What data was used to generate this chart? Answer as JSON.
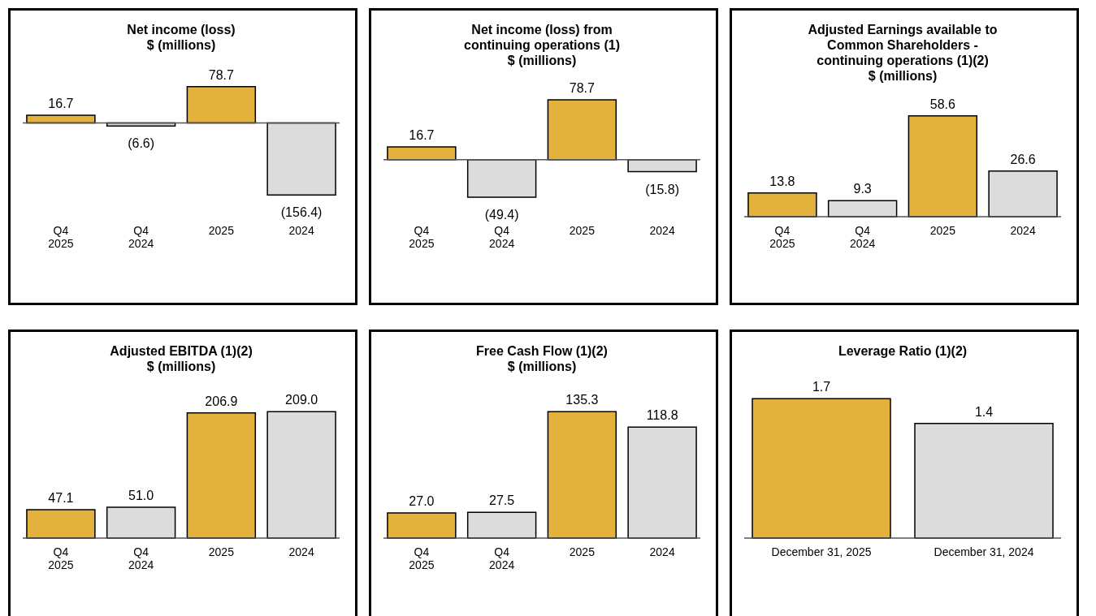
{
  "chart_data": [
    {
      "type": "bar",
      "title": "Net income (loss)\n$ (millions)",
      "categories": [
        "Q4\n2025",
        "Q4\n2024",
        "2025",
        "2024"
      ],
      "values": [
        16.7,
        -6.6,
        78.7,
        -156.4
      ],
      "value_labels": [
        "16.7",
        "(6.6)",
        "78.7",
        "(156.4)"
      ],
      "colors": [
        "#e3b23c",
        "#dcdcdc",
        "#e3b23c",
        "#dcdcdc"
      ],
      "legend": false
    },
    {
      "type": "bar",
      "title": "Net income (loss) from\ncontinuing operations (1)\n$ (millions)",
      "categories": [
        "Q4\n2025",
        "Q4\n2024",
        "2025",
        "2024"
      ],
      "values": [
        16.7,
        -49.4,
        78.7,
        -15.8
      ],
      "value_labels": [
        "16.7",
        "(49.4)",
        "78.7",
        "(15.8)"
      ],
      "colors": [
        "#e3b23c",
        "#dcdcdc",
        "#e3b23c",
        "#dcdcdc"
      ],
      "legend": false
    },
    {
      "type": "bar",
      "title": "Adjusted Earnings available to\nCommon Shareholders  -\ncontinuing operations (1)(2)\n$ (millions)",
      "categories": [
        "Q4\n2025",
        "Q4\n2024",
        "2025",
        "2024"
      ],
      "values": [
        13.8,
        9.3,
        58.6,
        26.6
      ],
      "value_labels": [
        "13.8",
        "9.3",
        "58.6",
        "26.6"
      ],
      "colors": [
        "#e3b23c",
        "#dcdcdc",
        "#e3b23c",
        "#dcdcdc"
      ],
      "legend": false
    },
    {
      "type": "bar",
      "title": "Adjusted EBITDA (1)(2)\n$ (millions)",
      "categories": [
        "Q4\n2025",
        "Q4\n2024",
        "2025",
        "2024"
      ],
      "values": [
        47.1,
        51.0,
        206.9,
        209.0
      ],
      "value_labels": [
        "47.1",
        "51.0",
        "206.9",
        "209.0"
      ],
      "colors": [
        "#e3b23c",
        "#dcdcdc",
        "#e3b23c",
        "#dcdcdc"
      ],
      "legend": false
    },
    {
      "type": "bar",
      "title": "Free Cash Flow (1)(2)\n$ (millions)",
      "categories": [
        "Q4\n2025",
        "Q4\n2024",
        "2025",
        "2024"
      ],
      "values": [
        27.0,
        27.5,
        135.3,
        118.8
      ],
      "value_labels": [
        "27.0",
        "27.5",
        "135.3",
        "118.8"
      ],
      "colors": [
        "#e3b23c",
        "#dcdcdc",
        "#e3b23c",
        "#dcdcdc"
      ],
      "legend": false
    },
    {
      "type": "bar",
      "title": "Leverage Ratio (1)(2)",
      "categories": [
        "December 31, 2025",
        "December 31, 2024"
      ],
      "values": [
        1.7,
        1.4
      ],
      "value_labels": [
        "1.7",
        "1.4"
      ],
      "colors": [
        "#e3b23c",
        "#dcdcdc"
      ],
      "legend": false
    }
  ]
}
